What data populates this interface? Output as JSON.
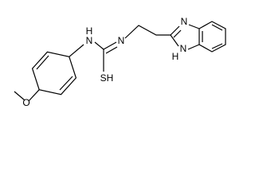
{
  "atom_labels": [
    "H",
    "N",
    "SH",
    "N",
    "N",
    "N",
    "H",
    "O"
  ]
}
